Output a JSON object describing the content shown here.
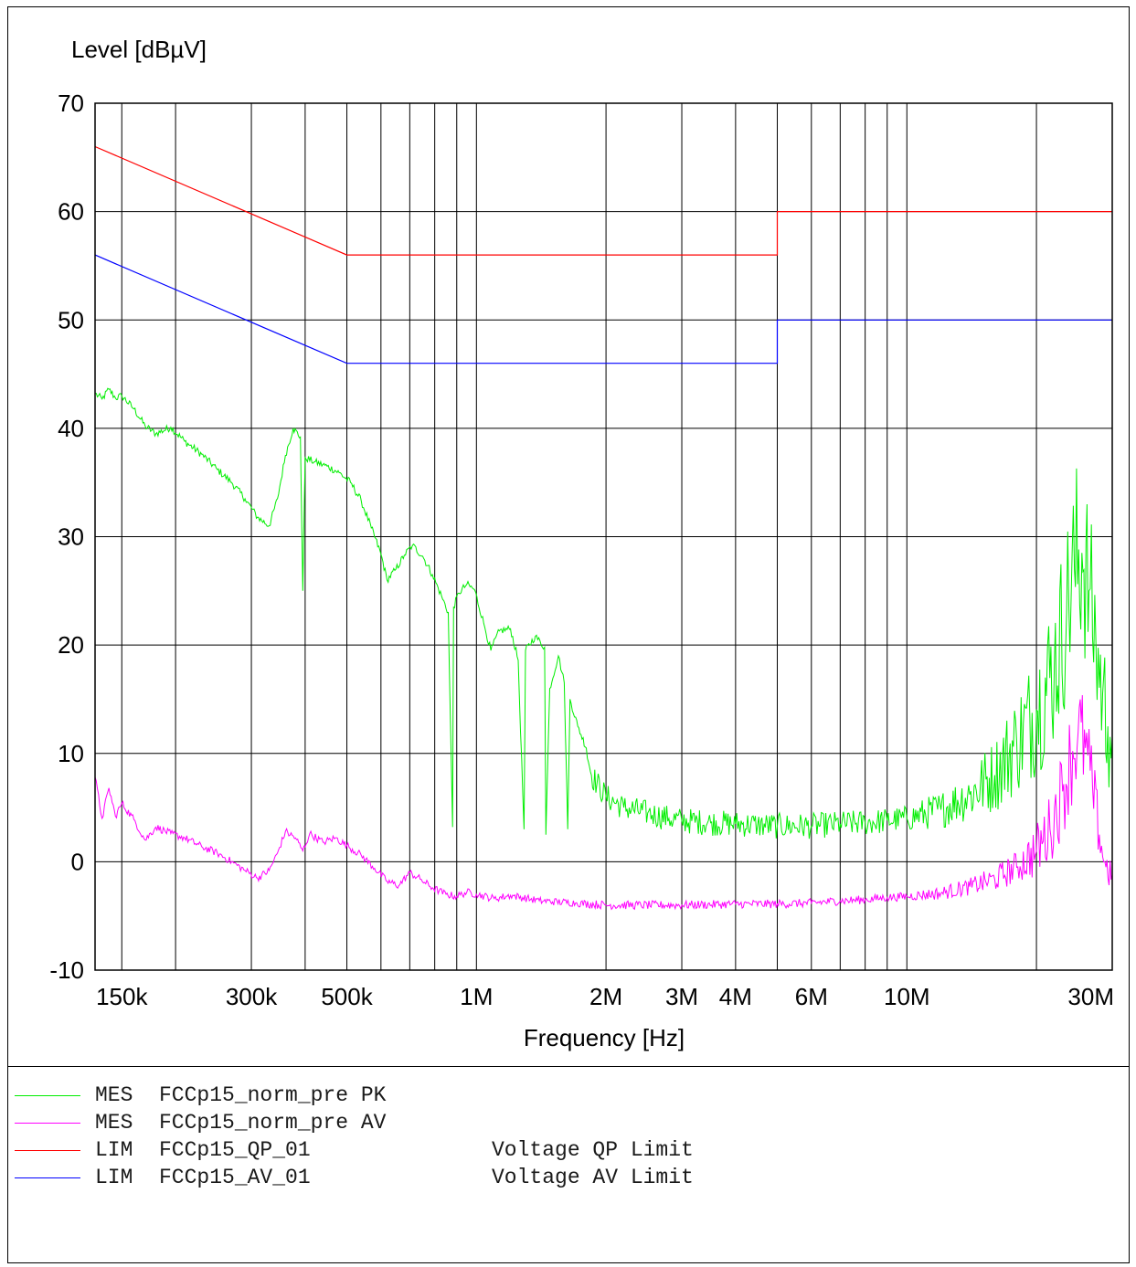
{
  "chart_data": {
    "type": "line",
    "ylabel": "Level [dBµV]",
    "xlabel": "Frequency [Hz]",
    "x_scale": "log",
    "xlim": [
      130000,
      30000000
    ],
    "ylim": [
      -10,
      70
    ],
    "y_ticks": [
      -10,
      0,
      10,
      20,
      30,
      40,
      50,
      60,
      70
    ],
    "x_tick_labels": [
      {
        "value": 150000,
        "label": "150k"
      },
      {
        "value": 300000,
        "label": "300k"
      },
      {
        "value": 500000,
        "label": "500k"
      },
      {
        "value": 1000000,
        "label": "1M"
      },
      {
        "value": 2000000,
        "label": "2M"
      },
      {
        "value": 3000000,
        "label": "3M"
      },
      {
        "value": 4000000,
        "label": "4M"
      },
      {
        "value": 6000000,
        "label": "6M"
      },
      {
        "value": 10000000,
        "label": "10M"
      },
      {
        "value": 30000000,
        "label": "30M"
      }
    ],
    "x_gridlines": [
      150000,
      200000,
      300000,
      400000,
      500000,
      600000,
      700000,
      800000,
      900000,
      1000000,
      2000000,
      3000000,
      4000000,
      5000000,
      6000000,
      7000000,
      8000000,
      9000000,
      10000000,
      20000000,
      30000000
    ],
    "grid": true,
    "series": [
      {
        "name": "FCCp15_QP_01",
        "kind": "LIM",
        "description": "Voltage QP Limit",
        "color": "#ff0000",
        "points": [
          [
            130000,
            66
          ],
          [
            500000,
            56
          ],
          [
            5000000,
            56
          ],
          [
            5000000,
            60
          ],
          [
            30000000,
            60
          ]
        ]
      },
      {
        "name": "FCCp15_AV_01",
        "kind": "LIM",
        "description": "Voltage AV Limit",
        "color": "#0000ff",
        "points": [
          [
            130000,
            56
          ],
          [
            500000,
            46
          ],
          [
            5000000,
            46
          ],
          [
            5000000,
            50
          ],
          [
            30000000,
            50
          ]
        ]
      },
      {
        "name": "FCCp15_norm_pre PK",
        "kind": "MES",
        "description": "",
        "color": "#00ee00",
        "points": [
          [
            130000,
            43.2
          ],
          [
            135000,
            42.7
          ],
          [
            140000,
            43.6
          ],
          [
            145000,
            42.8
          ],
          [
            150000,
            43.0
          ],
          [
            160000,
            41.8
          ],
          [
            170000,
            40.2
          ],
          [
            180000,
            39.5
          ],
          [
            195000,
            40.1
          ],
          [
            210000,
            38.8
          ],
          [
            230000,
            37.6
          ],
          [
            250000,
            36.2
          ],
          [
            270000,
            35.0
          ],
          [
            290000,
            33.5
          ],
          [
            310000,
            31.8
          ],
          [
            330000,
            31.0
          ],
          [
            345000,
            33.5
          ],
          [
            360000,
            37.5
          ],
          [
            375000,
            40.0
          ],
          [
            390000,
            39.2
          ],
          [
            395000,
            25.0
          ],
          [
            400000,
            37.3
          ],
          [
            420000,
            36.9
          ],
          [
            450000,
            36.5
          ],
          [
            480000,
            35.9
          ],
          [
            510000,
            35.0
          ],
          [
            540000,
            33.3
          ],
          [
            570000,
            30.8
          ],
          [
            600000,
            28.4
          ],
          [
            620000,
            26.0
          ],
          [
            650000,
            27.0
          ],
          [
            680000,
            28.3
          ],
          [
            710000,
            29.2
          ],
          [
            750000,
            28.2
          ],
          [
            790000,
            26.5
          ],
          [
            830000,
            24.5
          ],
          [
            860000,
            23.0
          ],
          [
            880000,
            3.2
          ],
          [
            885000,
            23.5
          ],
          [
            910000,
            24.8
          ],
          [
            950000,
            25.6
          ],
          [
            990000,
            25.1
          ],
          [
            1040000,
            22.0
          ],
          [
            1080000,
            19.5
          ],
          [
            1130000,
            21.3
          ],
          [
            1200000,
            21.5
          ],
          [
            1250000,
            18.6
          ],
          [
            1290000,
            3.0
          ],
          [
            1300000,
            19.5
          ],
          [
            1370000,
            20.8
          ],
          [
            1440000,
            19.8
          ],
          [
            1450000,
            2.5
          ],
          [
            1480000,
            16.0
          ],
          [
            1550000,
            19.0
          ],
          [
            1600000,
            16.5
          ],
          [
            1630000,
            3.0
          ],
          [
            1650000,
            15.0
          ],
          [
            1720000,
            12.5
          ],
          [
            1800000,
            10.5
          ],
          [
            1850000,
            8.0
          ],
          [
            2000000,
            6.0
          ],
          [
            2200000,
            5.0
          ],
          [
            2500000,
            4.5
          ],
          [
            2800000,
            4.0
          ],
          [
            3000000,
            3.8
          ],
          [
            3500000,
            3.6
          ],
          [
            4000000,
            3.5
          ],
          [
            4500000,
            3.4
          ],
          [
            5000000,
            3.3
          ],
          [
            6000000,
            3.3
          ],
          [
            7000000,
            3.5
          ],
          [
            8000000,
            3.6
          ],
          [
            9000000,
            3.8
          ],
          [
            10000000,
            4.0
          ],
          [
            12000000,
            4.8
          ],
          [
            14000000,
            6.2
          ],
          [
            16000000,
            8.0
          ],
          [
            18000000,
            11.0
          ],
          [
            20000000,
            14.0
          ],
          [
            22000000,
            18.0
          ],
          [
            23500000,
            23.0
          ],
          [
            24500000,
            27.0
          ],
          [
            25500000,
            28.5
          ],
          [
            26500000,
            25.0
          ],
          [
            27500000,
            20.0
          ],
          [
            28500000,
            15.5
          ],
          [
            29300000,
            12.5
          ],
          [
            30000000,
            11.5
          ]
        ],
        "peak_spread": [
          [
            10000000,
            1.2
          ],
          [
            13000000,
            2.0
          ],
          [
            16000000,
            3.5
          ],
          [
            19000000,
            5.5
          ],
          [
            22000000,
            7.5
          ],
          [
            24000000,
            9.0
          ],
          [
            25000000,
            10.0
          ],
          [
            26000000,
            9.0
          ],
          [
            28000000,
            7.0
          ],
          [
            30000000,
            5.5
          ]
        ]
      },
      {
        "name": "FCCp15_norm_pre AV",
        "kind": "MES",
        "description": "",
        "color": "#ff00ff",
        "points": [
          [
            130000,
            7.8
          ],
          [
            135000,
            4.0
          ],
          [
            140000,
            6.8
          ],
          [
            145000,
            4.2
          ],
          [
            150000,
            5.4
          ],
          [
            160000,
            3.9
          ],
          [
            170000,
            2.0
          ],
          [
            180000,
            3.2
          ],
          [
            195000,
            2.6
          ],
          [
            210000,
            2.2
          ],
          [
            230000,
            1.4
          ],
          [
            250000,
            0.8
          ],
          [
            270000,
            0.0
          ],
          [
            290000,
            -0.8
          ],
          [
            310000,
            -1.5
          ],
          [
            330000,
            -0.8
          ],
          [
            345000,
            0.8
          ],
          [
            360000,
            2.8
          ],
          [
            380000,
            2.2
          ],
          [
            395000,
            1.0
          ],
          [
            410000,
            2.6
          ],
          [
            440000,
            1.8
          ],
          [
            470000,
            2.2
          ],
          [
            500000,
            1.5
          ],
          [
            540000,
            0.6
          ],
          [
            580000,
            -0.6
          ],
          [
            620000,
            -1.8
          ],
          [
            660000,
            -2.2
          ],
          [
            700000,
            -1.0
          ],
          [
            740000,
            -1.6
          ],
          [
            790000,
            -2.4
          ],
          [
            850000,
            -3.0
          ],
          [
            900000,
            -3.2
          ],
          [
            950000,
            -2.8
          ],
          [
            1000000,
            -3.0
          ],
          [
            1100000,
            -3.4
          ],
          [
            1200000,
            -3.1
          ],
          [
            1400000,
            -3.6
          ],
          [
            1700000,
            -3.8
          ],
          [
            2000000,
            -4.0
          ],
          [
            3000000,
            -4.0
          ],
          [
            4000000,
            -3.9
          ],
          [
            5000000,
            -3.9
          ],
          [
            6000000,
            -3.8
          ],
          [
            7000000,
            -3.6
          ],
          [
            8000000,
            -3.5
          ],
          [
            9000000,
            -3.3
          ],
          [
            10000000,
            -3.2
          ],
          [
            12000000,
            -2.9
          ],
          [
            14000000,
            -2.3
          ],
          [
            16000000,
            -1.6
          ],
          [
            18000000,
            -0.5
          ],
          [
            20000000,
            1.0
          ],
          [
            21500000,
            3.0
          ],
          [
            23000000,
            6.5
          ],
          [
            24000000,
            9.5
          ],
          [
            25000000,
            12.0
          ],
          [
            26000000,
            10.5
          ],
          [
            27000000,
            7.0
          ],
          [
            28000000,
            2.5
          ],
          [
            29000000,
            -0.5
          ],
          [
            30000000,
            -1.2
          ]
        ],
        "peak_spread": [
          [
            10000000,
            0.4
          ],
          [
            14000000,
            0.8
          ],
          [
            18000000,
            1.5
          ],
          [
            22000000,
            3.5
          ],
          [
            25000000,
            5.5
          ],
          [
            28000000,
            2.5
          ],
          [
            30000000,
            1.5
          ]
        ]
      }
    ]
  },
  "legend": {
    "rows": [
      {
        "kind": "MES",
        "trace": "FCCp15_norm_pre PK",
        "desc": "",
        "color": "#00ee00"
      },
      {
        "kind": "MES",
        "trace": "FCCp15_norm_pre AV",
        "desc": "",
        "color": "#ff00ff"
      },
      {
        "kind": "LIM",
        "trace": "FCCp15_QP_01",
        "desc": "Voltage QP Limit",
        "color": "#ff0000"
      },
      {
        "kind": "LIM",
        "trace": "FCCp15_AV_01",
        "desc": "Voltage AV Limit",
        "color": "#0000ff"
      }
    ]
  }
}
